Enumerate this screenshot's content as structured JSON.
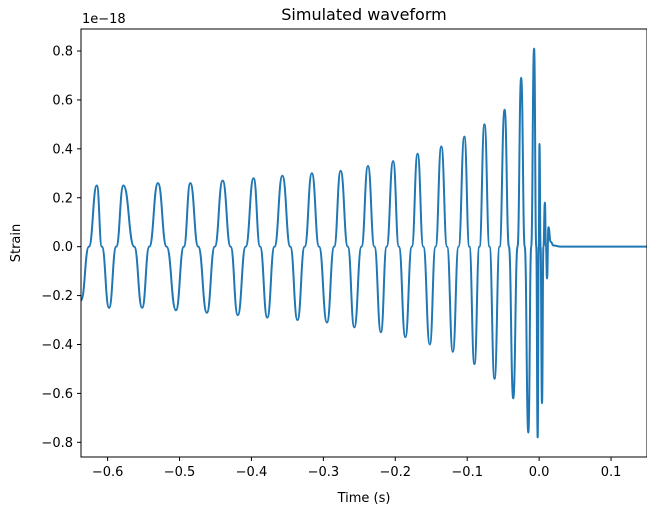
{
  "chart_data": {
    "type": "line",
    "title": "Simulated waveform",
    "xlabel": "Time (s)",
    "ylabel": "Strain",
    "offset_label": "1e−18",
    "xlim": [
      -0.637,
      0.15
    ],
    "ylim": [
      -0.86,
      0.89
    ],
    "x_ticks": [
      -0.6,
      -0.5,
      -0.4,
      -0.3,
      -0.2,
      -0.1,
      0.0,
      0.1
    ],
    "x_tick_labels": [
      "−0.6",
      "−0.5",
      "−0.4",
      "−0.3",
      "−0.2",
      "−0.1",
      "0.0",
      "0.1"
    ],
    "y_ticks": [
      -0.8,
      -0.6,
      -0.4,
      -0.2,
      0.0,
      0.2,
      0.4,
      0.6,
      0.8
    ],
    "y_tick_labels": [
      "−0.8",
      "−0.6",
      "−0.4",
      "−0.2",
      "0.0",
      "0.2",
      "0.4",
      "0.6",
      "0.8"
    ],
    "grid": false,
    "line_color": "#1f77b4",
    "series": [
      {
        "x": [
          -0.637,
          -0.626,
          -0.615,
          -0.608,
          -0.598,
          -0.588,
          -0.578,
          -0.563,
          -0.552,
          -0.542,
          -0.53,
          -0.518,
          -0.505,
          -0.494,
          -0.485,
          -0.474,
          -0.462,
          -0.451,
          -0.44,
          -0.429,
          -0.419,
          -0.408,
          -0.397,
          -0.388,
          -0.378,
          -0.368,
          -0.357,
          -0.346,
          -0.336,
          -0.326,
          -0.316,
          -0.306,
          -0.295,
          -0.285,
          -0.276,
          -0.266,
          -0.257,
          -0.247,
          -0.238,
          -0.229,
          -0.22,
          -0.212,
          -0.203,
          -0.195,
          -0.186,
          -0.177,
          -0.169,
          -0.161,
          -0.152,
          -0.144,
          -0.136,
          -0.128,
          -0.12,
          -0.112,
          -0.104,
          -0.097,
          -0.09,
          -0.083,
          -0.076,
          -0.069,
          -0.062,
          -0.055,
          -0.048,
          -0.042,
          -0.036,
          -0.03,
          -0.025,
          -0.02,
          -0.015,
          -0.011,
          -0.007,
          -0.004,
          -0.002,
          -0.0005,
          0.0005,
          0.002,
          0.004,
          0.006,
          0.008,
          0.0095,
          0.011,
          0.013,
          0.016,
          0.02,
          0.03,
          0.15
        ],
        "y": [
          -0.22,
          0.0,
          0.25,
          0.0,
          -0.25,
          0.0,
          0.25,
          0.0,
          -0.25,
          0.0,
          0.26,
          0.0,
          -0.26,
          0.0,
          0.26,
          0.0,
          -0.27,
          0.0,
          0.27,
          0.0,
          -0.28,
          0.0,
          0.28,
          0.0,
          -0.29,
          0.0,
          0.29,
          0.0,
          -0.3,
          0.0,
          0.3,
          0.0,
          -0.31,
          0.0,
          0.31,
          0.0,
          -0.33,
          0.0,
          0.33,
          0.0,
          -0.35,
          0.0,
          0.35,
          0.0,
          -0.37,
          0.0,
          0.38,
          0.0,
          -0.4,
          0.0,
          0.41,
          0.0,
          -0.43,
          0.0,
          0.45,
          0.0,
          -0.48,
          0.0,
          0.5,
          0.0,
          -0.54,
          0.0,
          0.56,
          0.0,
          -0.62,
          0.0,
          0.69,
          0.0,
          -0.76,
          0.0,
          0.81,
          0.0,
          -0.78,
          0.0,
          0.42,
          0.0,
          -0.64,
          0.0,
          0.18,
          0.0,
          -0.13,
          0.08,
          0.02,
          0.005,
          0.0,
          0.0
        ]
      }
    ]
  }
}
